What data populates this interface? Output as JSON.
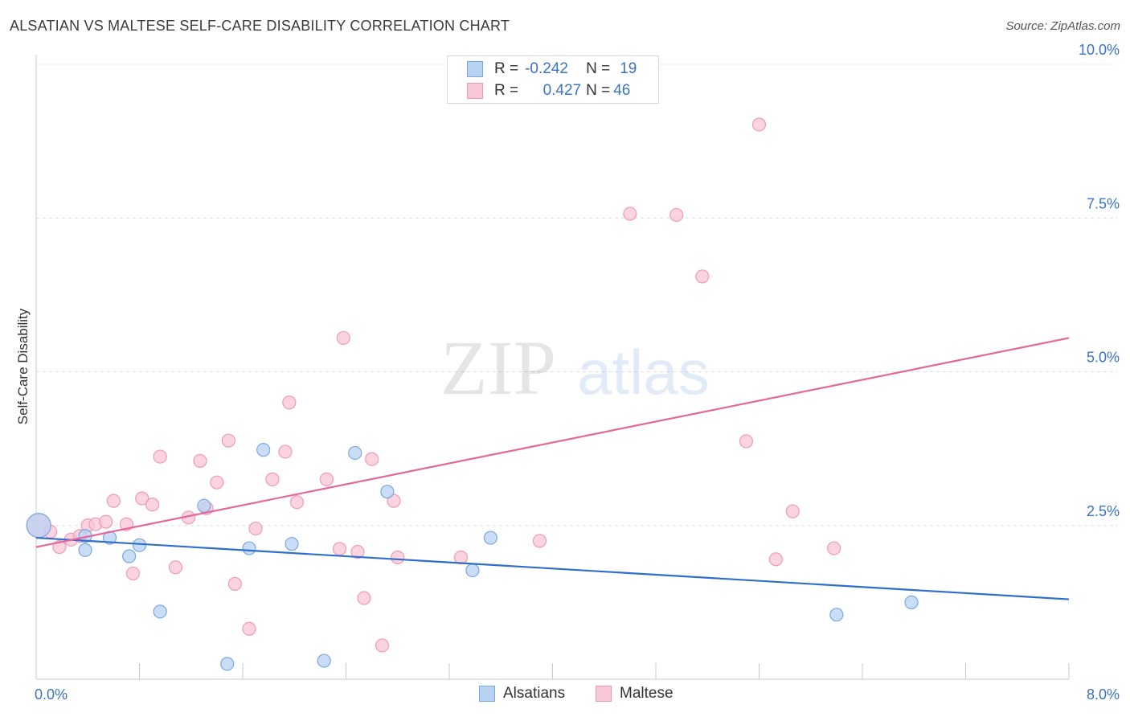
{
  "header": {
    "title": "ALSATIAN VS MALTESE SELF-CARE DISABILITY CORRELATION CHART",
    "source": "Source: ZipAtlas.com"
  },
  "colors": {
    "alsatian_fill": "#b8d2f4",
    "alsatian_stroke": "#7aa8e0",
    "alsatian_line": "#2f6fca",
    "maltese_fill": "#f9c6d6",
    "maltese_stroke": "#ee9ab6",
    "maltese_line": "#e4679a",
    "axis_text": "#3a74c4"
  },
  "legend": {
    "series": [
      {
        "r_label": "R =",
        "r_value": "-0.242",
        "n_label": "N =",
        "n_value": "19"
      },
      {
        "r_label": "R =",
        "r_value": "0.427",
        "n_label": "N =",
        "n_value": "46"
      }
    ]
  },
  "watermark": {
    "zip": "ZIP",
    "atlas": "atlas"
  },
  "chart_data": {
    "type": "scatter",
    "title": "ALSATIAN VS MALTESE SELF-CARE DISABILITY CORRELATION CHART",
    "xlabel": "",
    "ylabel": "Self-Care Disability",
    "xlim": [
      0,
      8.0
    ],
    "ylim": [
      0,
      10.0
    ],
    "x_tick_labels": [
      "0.0%",
      "8.0%"
    ],
    "y_ticks": [
      2.5,
      5.0,
      7.5,
      10.0
    ],
    "y_tick_labels": [
      "2.5%",
      "5.0%",
      "7.5%",
      "10.0%"
    ],
    "legend_entries": [
      "Alsatians",
      "Maltese"
    ],
    "series": [
      {
        "name": "Alsatians",
        "points": [
          [
            0.02,
            2.5
          ],
          [
            0.38,
            2.33
          ],
          [
            0.38,
            2.1
          ],
          [
            0.57,
            2.3
          ],
          [
            0.72,
            2.0
          ],
          [
            0.8,
            2.18
          ],
          [
            0.96,
            1.1
          ],
          [
            1.3,
            2.82
          ],
          [
            1.48,
            0.25
          ],
          [
            1.65,
            2.13
          ],
          [
            1.76,
            3.73
          ],
          [
            1.98,
            2.2
          ],
          [
            2.23,
            0.3
          ],
          [
            2.47,
            3.68
          ],
          [
            2.72,
            3.05
          ],
          [
            3.38,
            1.77
          ],
          [
            3.52,
            2.3
          ],
          [
            6.2,
            1.05
          ],
          [
            6.78,
            1.25
          ]
        ],
        "trend": {
          "x": [
            0,
            8.0
          ],
          "y": [
            2.3,
            1.3
          ]
        }
      },
      {
        "name": "Maltese",
        "points": [
          [
            0.02,
            2.5
          ],
          [
            0.11,
            2.4
          ],
          [
            0.18,
            2.15
          ],
          [
            0.27,
            2.27
          ],
          [
            0.34,
            2.33
          ],
          [
            0.4,
            2.5
          ],
          [
            0.46,
            2.52
          ],
          [
            0.54,
            2.56
          ],
          [
            0.6,
            2.9
          ],
          [
            0.7,
            2.52
          ],
          [
            0.75,
            1.72
          ],
          [
            0.82,
            2.94
          ],
          [
            0.9,
            2.84
          ],
          [
            0.96,
            3.62
          ],
          [
            1.08,
            1.82
          ],
          [
            1.18,
            2.63
          ],
          [
            1.27,
            3.55
          ],
          [
            1.32,
            2.78
          ],
          [
            1.4,
            3.2
          ],
          [
            1.49,
            3.88
          ],
          [
            1.54,
            1.55
          ],
          [
            1.65,
            0.82
          ],
          [
            1.7,
            2.45
          ],
          [
            1.83,
            3.25
          ],
          [
            1.93,
            3.7
          ],
          [
            1.96,
            4.5
          ],
          [
            2.02,
            2.88
          ],
          [
            2.25,
            3.25
          ],
          [
            2.35,
            2.12
          ],
          [
            2.38,
            5.55
          ],
          [
            2.49,
            2.07
          ],
          [
            2.54,
            1.32
          ],
          [
            2.6,
            3.58
          ],
          [
            2.68,
            0.55
          ],
          [
            2.77,
            2.9
          ],
          [
            2.8,
            1.98
          ],
          [
            3.29,
            1.98
          ],
          [
            3.9,
            2.25
          ],
          [
            4.6,
            7.57
          ],
          [
            4.96,
            7.55
          ],
          [
            5.16,
            6.55
          ],
          [
            5.5,
            3.87
          ],
          [
            5.6,
            9.02
          ],
          [
            5.73,
            1.95
          ],
          [
            5.86,
            2.73
          ],
          [
            6.18,
            2.13
          ]
        ],
        "trend": {
          "x": [
            0,
            8.0
          ],
          "y": [
            2.15,
            5.55
          ]
        }
      }
    ]
  }
}
